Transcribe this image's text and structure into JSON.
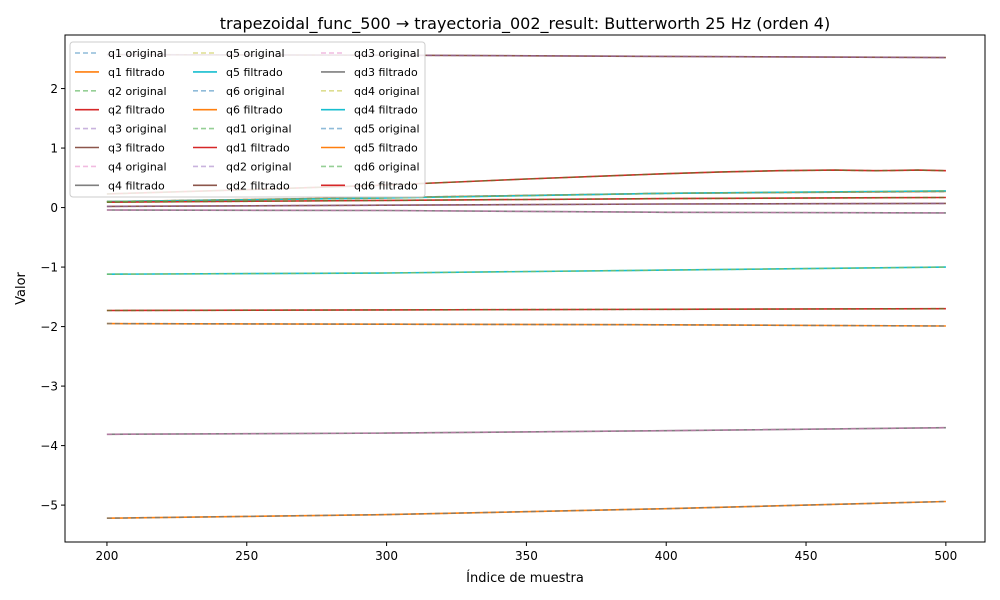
{
  "chart_data": {
    "type": "line",
    "title": "trapezoidal_func_500 → trayectoria_002_result: Butterworth 25 Hz (orden 4)",
    "xlabel": "Índice de muestra",
    "ylabel": "Valor",
    "xlim": [
      185,
      514
    ],
    "ylim": [
      -5.62,
      2.9
    ],
    "xticks": [
      200,
      250,
      300,
      350,
      400,
      450,
      500
    ],
    "yticks": [
      -5,
      -4,
      -3,
      -2,
      -1,
      0,
      1,
      2
    ],
    "grid": false,
    "legend_position": "top-left",
    "legend_columns": 3,
    "series": [
      {
        "name": "q1 original",
        "color": "#1f77b4",
        "style": "dashed",
        "x": [
          200,
          300,
          400,
          500
        ],
        "values": [
          0.1,
          0.17,
          0.24,
          0.27
        ]
      },
      {
        "name": "q1 filtrado",
        "color": "#ff7f0e",
        "style": "solid",
        "x": [
          200,
          300,
          400,
          500
        ],
        "values": [
          0.1,
          0.17,
          0.24,
          0.27
        ]
      },
      {
        "name": "q2 original",
        "color": "#2ca02c",
        "style": "dashed",
        "x": [
          200,
          300,
          400,
          500
        ],
        "values": [
          -1.73,
          -1.72,
          -1.71,
          -1.7
        ]
      },
      {
        "name": "q2 filtrado",
        "color": "#d62728",
        "style": "solid",
        "x": [
          200,
          300,
          400,
          500
        ],
        "values": [
          -1.73,
          -1.72,
          -1.71,
          -1.7
        ]
      },
      {
        "name": "q3 original",
        "color": "#9467bd",
        "style": "dashed",
        "x": [
          200,
          300,
          400,
          500
        ],
        "values": [
          2.57,
          2.56,
          2.54,
          2.52
        ]
      },
      {
        "name": "q3 filtrado",
        "color": "#8c564b",
        "style": "solid",
        "x": [
          200,
          300,
          400,
          500
        ],
        "values": [
          2.57,
          2.56,
          2.54,
          2.52
        ]
      },
      {
        "name": "q4 original",
        "color": "#e377c2",
        "style": "dashed",
        "x": [
          200,
          300,
          400,
          500
        ],
        "values": [
          -3.81,
          -3.79,
          -3.75,
          -3.7
        ]
      },
      {
        "name": "q4 filtrado",
        "color": "#7f7f7f",
        "style": "solid",
        "x": [
          200,
          300,
          400,
          500
        ],
        "values": [
          -3.81,
          -3.79,
          -3.75,
          -3.7
        ]
      },
      {
        "name": "q5 original",
        "color": "#bcbd22",
        "style": "dashed",
        "x": [
          200,
          300,
          400,
          500
        ],
        "values": [
          -1.12,
          -1.1,
          -1.05,
          -1.0
        ]
      },
      {
        "name": "q5 filtrado",
        "color": "#17becf",
        "style": "solid",
        "x": [
          200,
          300,
          400,
          500
        ],
        "values": [
          -1.12,
          -1.1,
          -1.05,
          -1.0
        ]
      },
      {
        "name": "q6 original",
        "color": "#1f77b4",
        "style": "dashed",
        "x": [
          200,
          300,
          400,
          500
        ],
        "values": [
          -5.22,
          -5.16,
          -5.06,
          -4.94
        ]
      },
      {
        "name": "q6 filtrado",
        "color": "#ff7f0e",
        "style": "solid",
        "x": [
          200,
          300,
          400,
          500
        ],
        "values": [
          -5.22,
          -5.16,
          -5.06,
          -4.94
        ]
      },
      {
        "name": "qd1 original",
        "color": "#2ca02c",
        "style": "dashed",
        "x": [
          200,
          250,
          300,
          350,
          400,
          420,
          440,
          460,
          475,
          490,
          500
        ],
        "values": [
          0.23,
          0.3,
          0.38,
          0.48,
          0.57,
          0.6,
          0.62,
          0.63,
          0.62,
          0.63,
          0.62
        ]
      },
      {
        "name": "qd1 filtrado",
        "color": "#d62728",
        "style": "solid",
        "x": [
          200,
          250,
          300,
          350,
          400,
          420,
          440,
          460,
          475,
          490,
          500
        ],
        "values": [
          0.23,
          0.3,
          0.38,
          0.48,
          0.57,
          0.6,
          0.62,
          0.63,
          0.62,
          0.63,
          0.62
        ]
      },
      {
        "name": "qd2 original",
        "color": "#9467bd",
        "style": "dashed",
        "x": [
          200,
          300,
          400,
          500
        ],
        "values": [
          0.02,
          0.04,
          0.06,
          0.07
        ]
      },
      {
        "name": "qd2 filtrado",
        "color": "#8c564b",
        "style": "solid",
        "x": [
          200,
          300,
          400,
          500
        ],
        "values": [
          0.02,
          0.04,
          0.06,
          0.07
        ]
      },
      {
        "name": "qd3 original",
        "color": "#e377c2",
        "style": "dashed",
        "x": [
          200,
          300,
          400,
          500
        ],
        "values": [
          -0.04,
          -0.05,
          -0.08,
          -0.09
        ]
      },
      {
        "name": "qd3 filtrado",
        "color": "#7f7f7f",
        "style": "solid",
        "x": [
          200,
          300,
          400,
          500
        ],
        "values": [
          -0.04,
          -0.05,
          -0.08,
          -0.09
        ]
      },
      {
        "name": "qd4 original",
        "color": "#bcbd22",
        "style": "dashed",
        "x": [
          200,
          300,
          400,
          500
        ],
        "values": [
          0.1,
          0.16,
          0.24,
          0.28
        ]
      },
      {
        "name": "qd4 filtrado",
        "color": "#17becf",
        "style": "solid",
        "x": [
          200,
          300,
          400,
          500
        ],
        "values": [
          0.1,
          0.16,
          0.24,
          0.28
        ]
      },
      {
        "name": "qd5 original",
        "color": "#1f77b4",
        "style": "dashed",
        "x": [
          200,
          300,
          400,
          500
        ],
        "values": [
          -1.95,
          -1.96,
          -1.97,
          -1.99
        ]
      },
      {
        "name": "qd5 filtrado",
        "color": "#ff7f0e",
        "style": "solid",
        "x": [
          200,
          300,
          400,
          500
        ],
        "values": [
          -1.95,
          -1.96,
          -1.97,
          -1.99
        ]
      },
      {
        "name": "qd6 original",
        "color": "#2ca02c",
        "style": "dashed",
        "x": [
          200,
          300,
          400,
          500
        ],
        "values": [
          0.09,
          0.12,
          0.15,
          0.17
        ]
      },
      {
        "name": "qd6 filtrado",
        "color": "#d62728",
        "style": "solid",
        "x": [
          200,
          300,
          400,
          500
        ],
        "values": [
          0.09,
          0.12,
          0.15,
          0.17
        ]
      }
    ]
  }
}
